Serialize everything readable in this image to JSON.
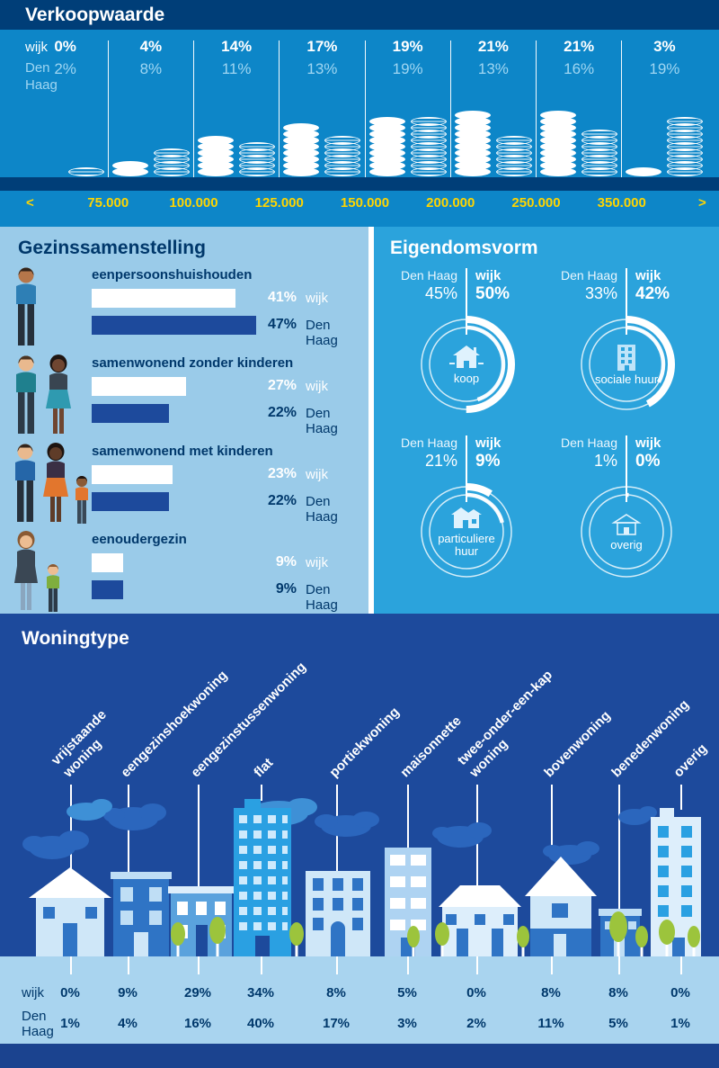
{
  "colors": {
    "blue-mid": "#0d86c8",
    "navy-dark": "#003e78",
    "text-light": "#9fd6f2",
    "yellow": "#ffd500",
    "panel-light": "#9acbe9",
    "navy-text": "#00386b",
    "bar-navy": "#1d4a9c",
    "panel-bright": "#2ba3dc",
    "section-navy": "#1d4a9c",
    "ground": "#a9d4ef",
    "strip-bottom": "#1b438f"
  },
  "verkoopwaarde": {
    "title": "Verkoopwaarde",
    "row_wijk_label": "wijk",
    "row_denhaag_label": "Den Haag",
    "columns": [
      {
        "wijk": "0%",
        "wijk_val": 0,
        "denhaag": "2%",
        "denhaag_val": 2
      },
      {
        "wijk": "4%",
        "wijk_val": 4,
        "denhaag": "8%",
        "denhaag_val": 8
      },
      {
        "wijk": "14%",
        "wijk_val": 14,
        "denhaag": "11%",
        "denhaag_val": 11
      },
      {
        "wijk": "17%",
        "wijk_val": 17,
        "denhaag": "13%",
        "denhaag_val": 13
      },
      {
        "wijk": "19%",
        "wijk_val": 19,
        "denhaag": "19%",
        "denhaag_val": 19
      },
      {
        "wijk": "21%",
        "wijk_val": 21,
        "denhaag": "13%",
        "denhaag_val": 13
      },
      {
        "wijk": "21%",
        "wijk_val": 21,
        "denhaag": "16%",
        "denhaag_val": 16
      },
      {
        "wijk": "3%",
        "wijk_val": 3,
        "denhaag": "19%",
        "denhaag_val": 19
      }
    ],
    "axis_labels": [
      "<",
      "75.000",
      "100.000",
      "125.000",
      "150.000",
      "200.000",
      "250.000",
      "350.000",
      ">"
    ]
  },
  "gezinssamenstelling": {
    "title": "Gezinssamenstelling",
    "wijk_label": "wijk",
    "denhaag_label": "Den Haag",
    "groups": [
      {
        "label": "eenpersoonshuishouden",
        "wijk": "41%",
        "wijk_val": 41,
        "denhaag": "47%",
        "denhaag_val": 47
      },
      {
        "label": "samenwonend zonder kinderen",
        "wijk": "27%",
        "wijk_val": 27,
        "denhaag": "22%",
        "denhaag_val": 22
      },
      {
        "label": "samenwonend met kinderen",
        "wijk": "23%",
        "wijk_val": 23,
        "denhaag": "22%",
        "denhaag_val": 22
      },
      {
        "label": "eenoudergezin",
        "wijk": "9%",
        "wijk_val": 9,
        "denhaag": "9%",
        "denhaag_val": 9
      }
    ]
  },
  "eigendomsvorm": {
    "title": "Eigendomsvorm",
    "denhaag_label": "Den Haag",
    "wijk_label": "wijk",
    "charts": [
      {
        "label": "koop",
        "icon": "house-icon",
        "denhaag": "45%",
        "denhaag_val": 45,
        "wijk": "50%",
        "wijk_val": 50
      },
      {
        "label": "sociale huur",
        "icon": "apartment-building-icon",
        "denhaag": "33%",
        "denhaag_val": 33,
        "wijk": "42%",
        "wijk_val": 42
      },
      {
        "label": "particuliere huur",
        "icon": "house-icon",
        "denhaag": "21%",
        "denhaag_val": 21,
        "wijk": "9%",
        "wijk_val": 9
      },
      {
        "label": "overig",
        "icon": "house-outline-icon",
        "denhaag": "1%",
        "denhaag_val": 1,
        "wijk": "0%",
        "wijk_val": 0
      }
    ]
  },
  "woningtype": {
    "title": "Woningtype",
    "wijk_label": "wijk",
    "denhaag_label": "Den Haag",
    "types": [
      {
        "label": "vrijstaande\nwoning",
        "wijk": "0%",
        "denhaag": "1%"
      },
      {
        "label": "eengezinshoekwoning",
        "wijk": "9%",
        "denhaag": "4%"
      },
      {
        "label": "eengezinstussenwoning",
        "wijk": "29%",
        "denhaag": "16%"
      },
      {
        "label": "flat",
        "wijk": "34%",
        "denhaag": "40%"
      },
      {
        "label": "portiekwoning",
        "wijk": "8%",
        "denhaag": "17%"
      },
      {
        "label": "maisonnette",
        "wijk": "5%",
        "denhaag": "3%"
      },
      {
        "label": "twee-onder-een-kap\nwoning",
        "wijk": "0%",
        "denhaag": "2%"
      },
      {
        "label": "bovenwoning",
        "wijk": "8%",
        "denhaag": "11%"
      },
      {
        "label": "benedenwoning",
        "wijk": "8%",
        "denhaag": "5%"
      },
      {
        "label": "overig",
        "wijk": "0%",
        "denhaag": "1%"
      }
    ]
  },
  "chart_data": [
    {
      "type": "bar",
      "title": "Verkoopwaarde",
      "categories": [
        "< 75.000",
        "75.000-100.000",
        "100.000-125.000",
        "125.000-150.000",
        "150.000-200.000",
        "200.000-250.000",
        "250.000-350.000",
        "> 350.000"
      ],
      "series": [
        {
          "name": "wijk",
          "values": [
            0,
            4,
            14,
            17,
            19,
            21,
            21,
            3
          ]
        },
        {
          "name": "Den Haag",
          "values": [
            2,
            8,
            11,
            13,
            19,
            13,
            16,
            19
          ]
        }
      ],
      "unit": "%",
      "ylim": [
        0,
        25
      ],
      "legend_position": "left"
    },
    {
      "type": "bar",
      "title": "Gezinssamenstelling",
      "categories": [
        "eenpersoonshuishouden",
        "samenwonend zonder kinderen",
        "samenwonend met kinderen",
        "eenoudergezin"
      ],
      "series": [
        {
          "name": "wijk",
          "values": [
            41,
            27,
            23,
            9
          ]
        },
        {
          "name": "Den Haag",
          "values": [
            47,
            22,
            22,
            9
          ]
        }
      ],
      "unit": "%",
      "orientation": "horizontal"
    },
    {
      "type": "pie",
      "title": "Eigendomsvorm",
      "categories": [
        "koop",
        "sociale huur",
        "particuliere huur",
        "overig"
      ],
      "series": [
        {
          "name": "Den Haag",
          "values": [
            45,
            33,
            21,
            1
          ]
        },
        {
          "name": "wijk",
          "values": [
            50,
            42,
            9,
            0
          ]
        }
      ],
      "unit": "%",
      "subtype": "donut-per-category"
    },
    {
      "type": "bar",
      "title": "Woningtype",
      "categories": [
        "vrijstaande woning",
        "eengezinshoekwoning",
        "eengezinstussenwoning",
        "flat",
        "portiekwoning",
        "maisonnette",
        "twee-onder-een-kap woning",
        "bovenwoning",
        "benedenwoning",
        "overig"
      ],
      "series": [
        {
          "name": "wijk",
          "values": [
            0,
            9,
            29,
            34,
            8,
            5,
            0,
            8,
            8,
            0
          ]
        },
        {
          "name": "Den Haag",
          "values": [
            1,
            4,
            16,
            40,
            17,
            3,
            2,
            11,
            5,
            1
          ]
        }
      ],
      "unit": "%"
    }
  ]
}
